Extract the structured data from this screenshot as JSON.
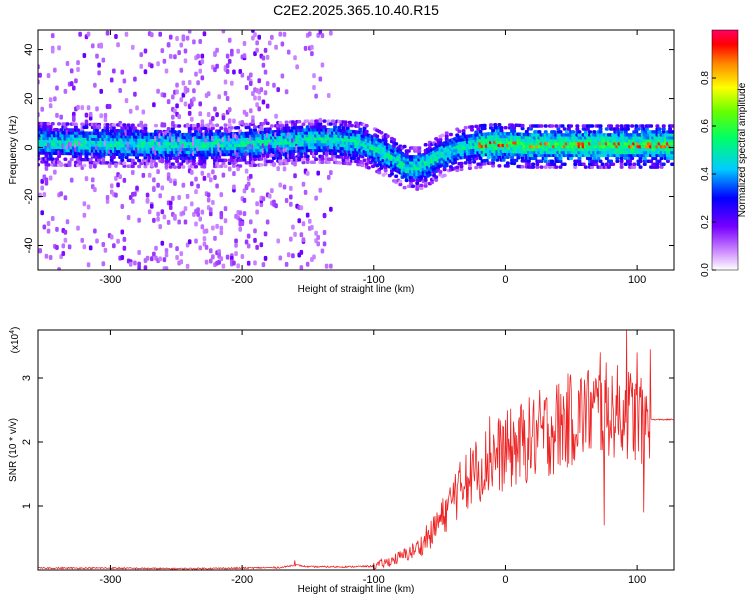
{
  "title": "C2E2.2025.365.10.40.R15",
  "chart_data": [
    {
      "type": "heatmap",
      "title": "C2E2.2025.365.10.40.R15",
      "xlabel": "Height of straight line (km)",
      "ylabel": "Frequency (Hz)",
      "xlim": [
        -355,
        128
      ],
      "ylim": [
        -50,
        48
      ],
      "xticks": [
        -300,
        -200,
        -100,
        0,
        100
      ],
      "xtick_labels": [
        "-300",
        "-200",
        "-100",
        "0",
        "100"
      ],
      "yticks": [
        -40,
        -20,
        0,
        20,
        40
      ],
      "ytick_labels": [
        "-40",
        "-20",
        "0",
        "20",
        "40"
      ],
      "ridge": {
        "x": [
          -355,
          -300,
          -250,
          -200,
          -150,
          -130,
          -110,
          -100,
          -90,
          -80,
          -75,
          -65,
          -55,
          -45,
          -35,
          -20,
          -10,
          0,
          20,
          50,
          80,
          100,
          128
        ],
        "y": [
          2,
          1.5,
          1,
          1.5,
          3,
          3,
          2,
          0,
          -3,
          -6,
          -8,
          -8,
          -5,
          -2,
          0,
          1,
          1.5,
          1.5,
          1,
          1,
          1,
          1,
          1
        ]
      },
      "colorbar": {
        "label": "Normalized spectral amplitude",
        "range": [
          0,
          1
        ],
        "ticks": [
          0.0,
          0.2,
          0.4,
          0.6,
          0.8
        ],
        "tick_labels": [
          "0.0",
          "0.2",
          "0.4",
          "0.6",
          "0.8"
        ]
      }
    },
    {
      "type": "line",
      "xlabel": "Height of straight line (km)",
      "ylabel": "SNR (10 * v/v)",
      "multiplier_label": "(x10",
      "multiplier_exponent": "4",
      "multiplier_close": ")",
      "xlim": [
        -355,
        128
      ],
      "ylim": [
        0,
        3.75
      ],
      "xticks": [
        -300,
        -200,
        -100,
        0,
        100
      ],
      "xtick_labels": [
        "-300",
        "-200",
        "-100",
        "0",
        "100"
      ],
      "yticks": [
        1,
        2,
        3
      ],
      "ytick_labels": [
        "1",
        "2",
        "3"
      ],
      "color": "#ee2222",
      "series": [
        {
          "name": "SNR",
          "x": [
            -355,
            -300,
            -250,
            -200,
            -170,
            -160,
            -150,
            -120,
            -100,
            -90,
            -80,
            -70,
            -60,
            -50,
            -40,
            -30,
            -20,
            -10,
            0,
            10,
            20,
            30,
            40,
            50,
            60,
            70,
            80,
            90,
            100,
            110,
            115,
            128
          ],
          "y": [
            0.03,
            0.03,
            0.02,
            0.03,
            0.04,
            0.08,
            0.05,
            0.05,
            0.06,
            0.12,
            0.2,
            0.3,
            0.45,
            0.75,
            1.1,
            1.4,
            1.6,
            1.75,
            1.85,
            1.95,
            2.05,
            2.15,
            2.25,
            2.35,
            2.45,
            2.5,
            2.5,
            2.45,
            2.4,
            2.35,
            2.35,
            2.35
          ]
        }
      ],
      "spikes": {
        "x": [
          -160,
          -60,
          -52,
          -38,
          -30,
          -22,
          -12,
          50,
          62,
          72,
          75,
          82,
          92,
          100,
          105,
          110
        ],
        "y": [
          0.15,
          0.7,
          0.9,
          1.5,
          1.8,
          1.9,
          2.4,
          2.8,
          2.9,
          3.4,
          0.7,
          2.5,
          3.75,
          3.4,
          0.9,
          3.45
        ]
      }
    }
  ]
}
